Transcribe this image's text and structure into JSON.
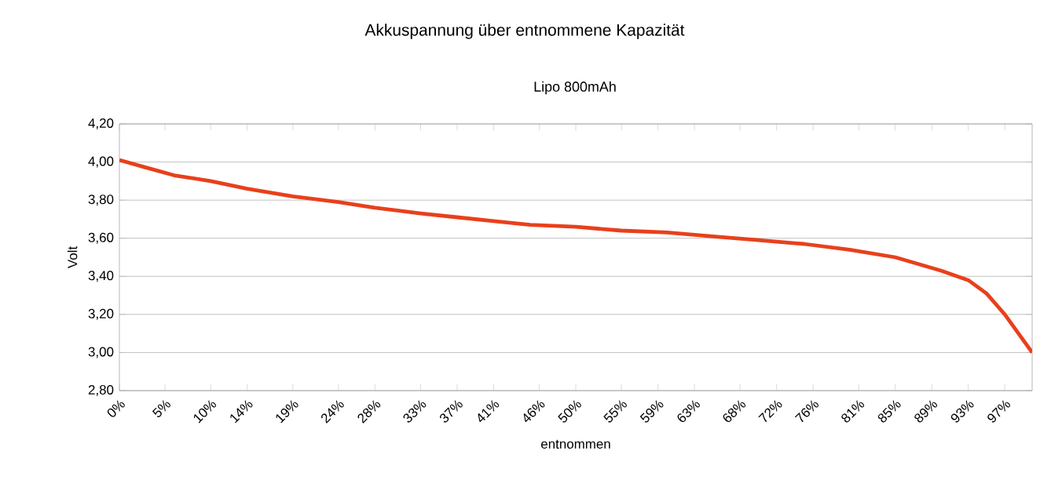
{
  "chart_data": {
    "type": "line",
    "title": "Akkuspannung über entnommene Kapazität",
    "subtitle": "Lipo 800mAh",
    "xlabel": "entnommen",
    "ylabel": "Volt",
    "series": [
      {
        "color": "#e8401c",
        "x": [
          0,
          3,
          6,
          10,
          14,
          19,
          24,
          28,
          33,
          37,
          41,
          45,
          50,
          55,
          60,
          65,
          70,
          75,
          80,
          85,
          90,
          93,
          95,
          97,
          98.5,
          100
        ],
        "values": [
          4.01,
          3.97,
          3.93,
          3.9,
          3.86,
          3.82,
          3.79,
          3.76,
          3.73,
          3.71,
          3.69,
          3.67,
          3.66,
          3.64,
          3.63,
          3.61,
          3.59,
          3.57,
          3.54,
          3.5,
          3.43,
          3.38,
          3.31,
          3.2,
          3.1,
          3.0
        ]
      }
    ],
    "xlim": [
      0,
      100
    ],
    "xticks": [
      {
        "value": 0,
        "label": "0%"
      },
      {
        "value": 5,
        "label": "5%"
      },
      {
        "value": 10,
        "label": "10%"
      },
      {
        "value": 14,
        "label": "14%"
      },
      {
        "value": 19,
        "label": "19%"
      },
      {
        "value": 24,
        "label": "24%"
      },
      {
        "value": 28,
        "label": "28%"
      },
      {
        "value": 33,
        "label": "33%"
      },
      {
        "value": 37,
        "label": "37%"
      },
      {
        "value": 41,
        "label": "41%"
      },
      {
        "value": 46,
        "label": "46%"
      },
      {
        "value": 50,
        "label": "50%"
      },
      {
        "value": 55,
        "label": "55%"
      },
      {
        "value": 59,
        "label": "59%"
      },
      {
        "value": 63,
        "label": "63%"
      },
      {
        "value": 68,
        "label": "68%"
      },
      {
        "value": 72,
        "label": "72%"
      },
      {
        "value": 76,
        "label": "76%"
      },
      {
        "value": 81,
        "label": "81%"
      },
      {
        "value": 85,
        "label": "85%"
      },
      {
        "value": 89,
        "label": "89%"
      },
      {
        "value": 93,
        "label": "93%"
      },
      {
        "value": 97,
        "label": "97%"
      }
    ],
    "ylim": [
      2.8,
      4.2
    ],
    "yticks": [
      {
        "value": 2.8,
        "label": "2,80"
      },
      {
        "value": 3.0,
        "label": "3,00"
      },
      {
        "value": 3.2,
        "label": "3,20"
      },
      {
        "value": 3.4,
        "label": "3,40"
      },
      {
        "value": 3.6,
        "label": "3,60"
      },
      {
        "value": 3.8,
        "label": "3,80"
      },
      {
        "value": 4.0,
        "label": "4,00"
      },
      {
        "value": 4.2,
        "label": "4,20"
      }
    ],
    "grid": "y",
    "legend": false,
    "marker": "none",
    "line_style": "solid"
  }
}
